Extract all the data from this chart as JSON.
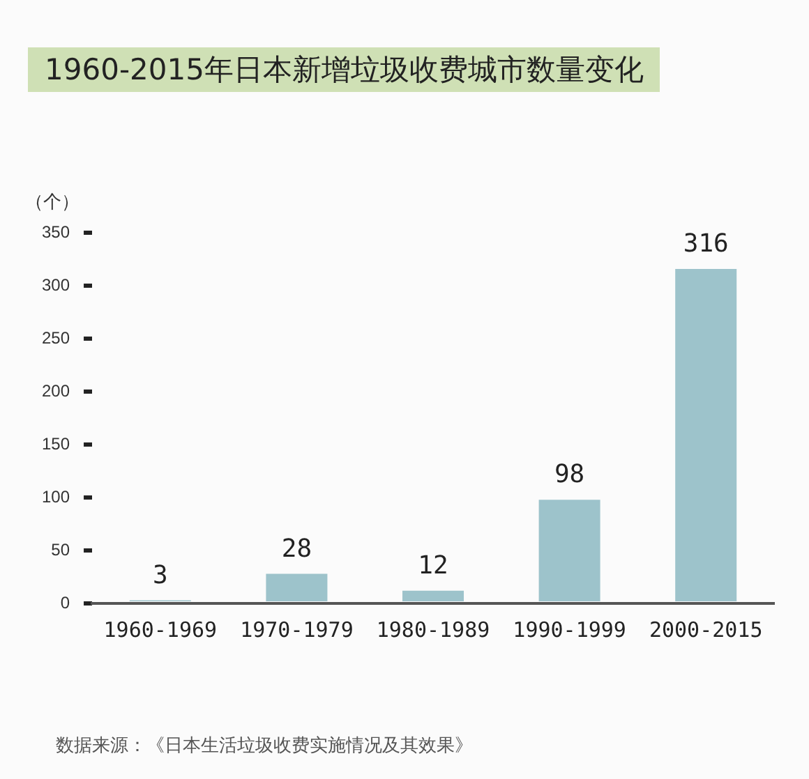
{
  "chart_data": {
    "type": "bar",
    "title": "1960-2015年日本新增垃圾收费城市数量变化",
    "ylabel": "（个）",
    "categories": [
      "1960-1969",
      "1970-1979",
      "1980-1989",
      "1990-1999",
      "2000-2015"
    ],
    "values": [
      3,
      28,
      12,
      98,
      316
    ],
    "color": "#9dc3cb",
    "ylim": [
      0,
      350
    ],
    "yticks": [
      0,
      50,
      100,
      150,
      200,
      250,
      300,
      350
    ],
    "data_labels": true,
    "legend": false,
    "annotations": [
      "数据来源：《日本生活垃圾收费实施情况及其效果》"
    ]
  }
}
